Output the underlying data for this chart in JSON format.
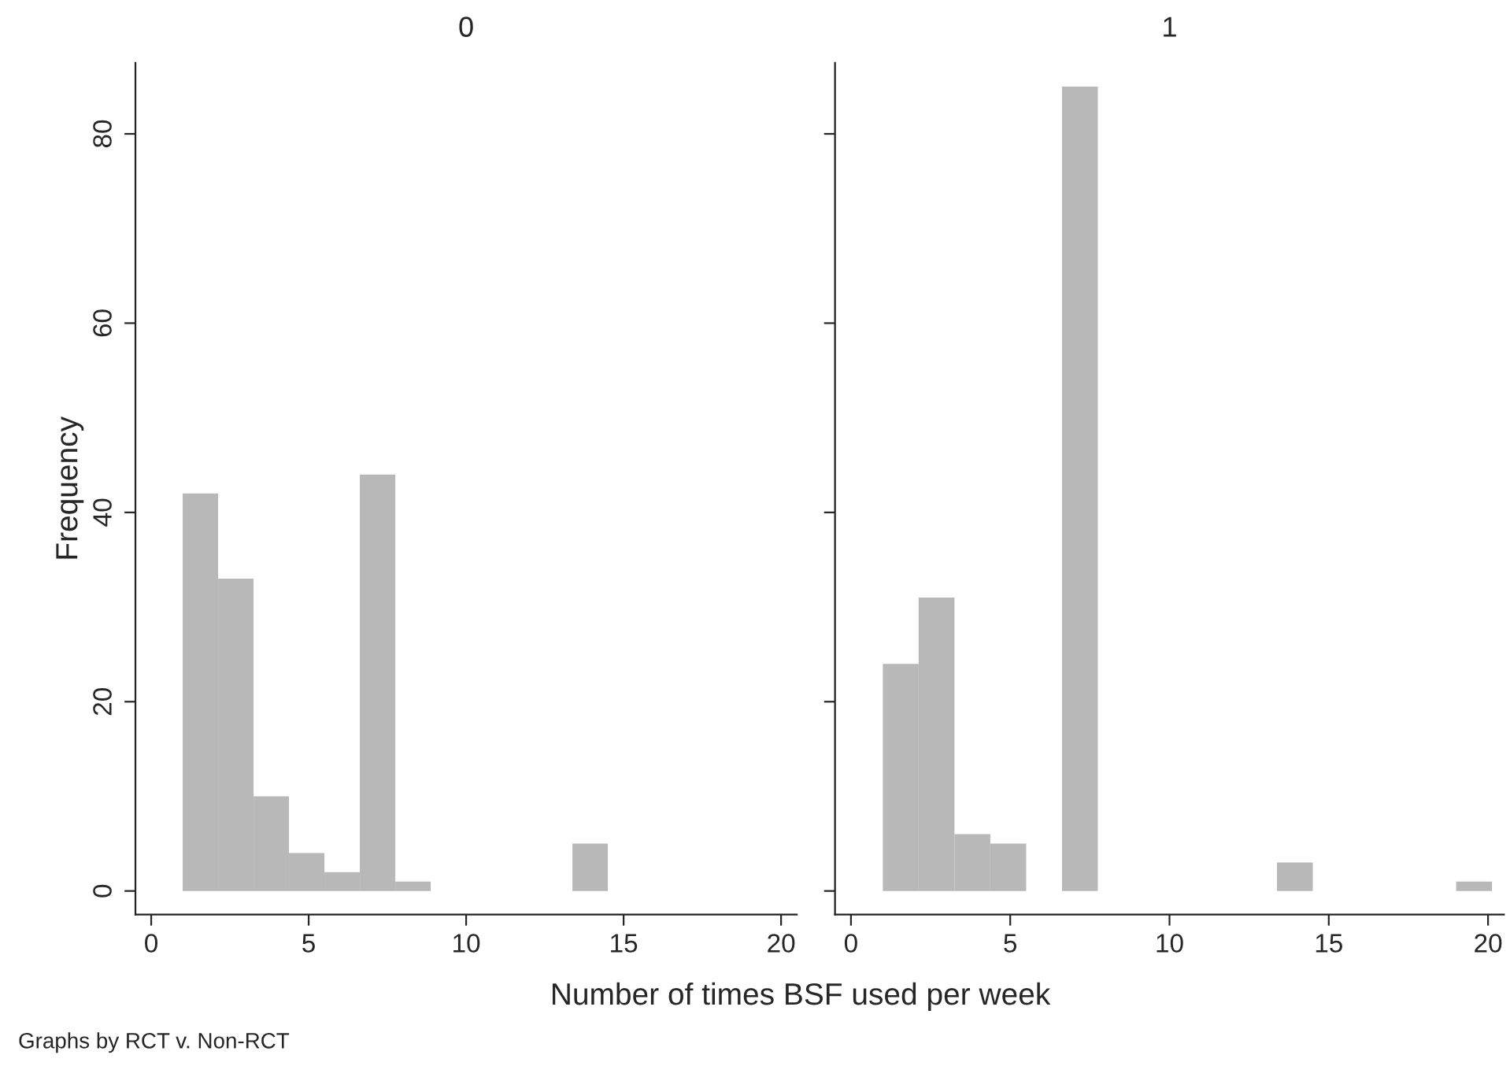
{
  "chart_data": [
    {
      "type": "histogram",
      "title": "0",
      "xlabel": "Number of times BSF used per week",
      "ylabel": "Frequency",
      "bins": [
        1,
        2.125,
        3.25,
        4.375,
        5.5,
        6.625,
        7.75,
        8.875,
        10,
        11.125,
        12.25,
        13.375,
        14.5,
        15.625,
        16.75,
        17.875,
        19,
        20.125
      ],
      "values": [
        42,
        33,
        10,
        4,
        2,
        44,
        1,
        0,
        0,
        0,
        0,
        5,
        0,
        0,
        0,
        0,
        0
      ],
      "color": "#b8b8b8",
      "xlim": [
        -0.5,
        20.5
      ],
      "ylim": [
        -2.5,
        87.5
      ],
      "xticks": [
        0,
        5,
        10,
        15,
        20
      ],
      "yticks": [
        0,
        20,
        40,
        60,
        80
      ],
      "grid": false
    },
    {
      "type": "histogram",
      "title": "1",
      "bins": [
        1,
        2.125,
        3.25,
        4.375,
        5.5,
        6.625,
        7.75,
        8.875,
        10,
        11.125,
        12.25,
        13.375,
        14.5,
        15.625,
        16.75,
        17.875,
        19,
        20.125
      ],
      "values": [
        24,
        31,
        6,
        5,
        0,
        85,
        0,
        0,
        0,
        0,
        0,
        3,
        0,
        0,
        0,
        0,
        1
      ],
      "color": "#b8b8b8",
      "xlim": [
        -0.5,
        20.5
      ],
      "ylim": [
        -2.5,
        87.5
      ],
      "xticks": [
        0,
        5,
        10,
        15,
        20
      ],
      "yticks": [
        0,
        20,
        40,
        60,
        80
      ],
      "tick_labels": "x",
      "grid": false,
      "annotations": [
        "Graphs by RCT v. Non-RCT"
      ]
    }
  ]
}
